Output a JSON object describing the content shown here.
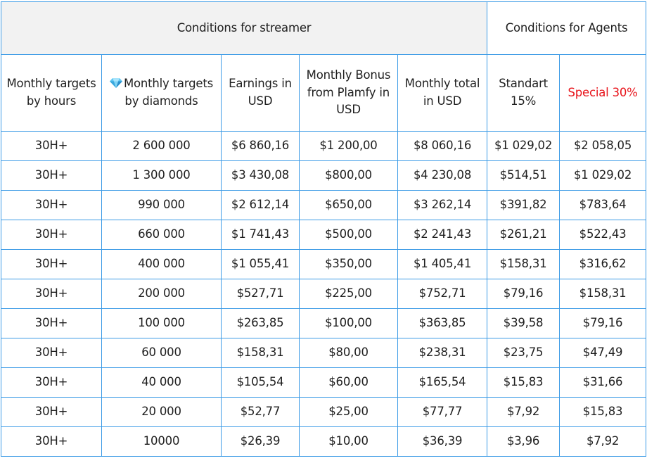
{
  "header": {
    "streamer_group": "Conditions for streamer",
    "agents_group": "Conditions for Agents",
    "columns": [
      "Monthly targets by hours",
      "Monthly targets by diamonds",
      "Earnings in USD",
      "Monthly Bonus from Plamfy in USD",
      "Monthly total in USD",
      "Standart 15%",
      "Special 30%"
    ],
    "diamond_icon": "gem-icon"
  },
  "colors": {
    "border": "#3c9be6",
    "special_text": "#e8141b",
    "group_background": "#f2f2f2"
  },
  "rows": [
    [
      "30H+",
      "2 600 000",
      "$6 860,16",
      "$1 200,00",
      "$8 060,16",
      "$1 029,02",
      "$2 058,05"
    ],
    [
      "30H+",
      "1 300 000",
      "$3 430,08",
      "$800,00",
      "$4 230,08",
      "$514,51",
      "$1 029,02"
    ],
    [
      "30H+",
      "990 000",
      "$2 612,14",
      "$650,00",
      "$3 262,14",
      "$391,82",
      "$783,64"
    ],
    [
      "30H+",
      "660 000",
      "$1 741,43",
      "$500,00",
      "$2 241,43",
      "$261,21",
      "$522,43"
    ],
    [
      "30H+",
      "400 000",
      "$1 055,41",
      "$350,00",
      "$1 405,41",
      "$158,31",
      "$316,62"
    ],
    [
      "30H+",
      "200 000",
      "$527,71",
      "$225,00",
      "$752,71",
      "$79,16",
      "$158,31"
    ],
    [
      "30H+",
      "100 000",
      "$263,85",
      "$100,00",
      "$363,85",
      "$39,58",
      "$79,16"
    ],
    [
      "30H+",
      "60 000",
      "$158,31",
      "$80,00",
      "$238,31",
      "$23,75",
      "$47,49"
    ],
    [
      "30H+",
      "40 000",
      "$105,54",
      "$60,00",
      "$165,54",
      "$15,83",
      "$31,66"
    ],
    [
      "30H+",
      "20 000",
      "$52,77",
      "$25,00",
      "$77,77",
      "$7,92",
      "$15,83"
    ],
    [
      "30H+",
      "10000",
      "$26,39",
      "$10,00",
      "$36,39",
      "$3,96",
      "$7,92"
    ]
  ]
}
